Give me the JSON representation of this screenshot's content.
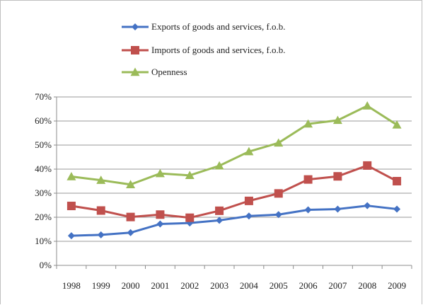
{
  "chart_data": {
    "type": "line",
    "x": [
      "1998",
      "1999",
      "2000",
      "2001",
      "2002",
      "2003",
      "2004",
      "2005",
      "2006",
      "2007",
      "2008",
      "2009"
    ],
    "ylim": [
      0,
      70
    ],
    "yticks": [
      0,
      10,
      20,
      30,
      40,
      50,
      60,
      70
    ],
    "ytick_labels": [
      "0%",
      "10%",
      "20%",
      "30%",
      "40%",
      "50%",
      "60%",
      "70%"
    ],
    "grid": true,
    "legend_position": "top",
    "series": [
      {
        "name": "Exports of goods and services, f.o.b.",
        "color": "#4472c4",
        "marker": "diamond",
        "values": [
          12.3,
          12.7,
          13.6,
          17.2,
          17.6,
          18.7,
          20.5,
          21.1,
          23.1,
          23.4,
          24.8,
          23.4
        ]
      },
      {
        "name": "Imports of goods and services, f.o.b.",
        "color": "#c0504d",
        "marker": "square",
        "values": [
          24.7,
          22.8,
          20.1,
          21.1,
          19.8,
          22.7,
          26.8,
          29.9,
          35.7,
          37.0,
          41.5,
          35.0
        ]
      },
      {
        "name": "Openness",
        "color": "#9bbb59",
        "marker": "triangle",
        "values": [
          36.9,
          35.4,
          33.6,
          38.2,
          37.4,
          41.4,
          47.3,
          50.9,
          58.8,
          60.3,
          66.3,
          58.4
        ]
      }
    ]
  }
}
